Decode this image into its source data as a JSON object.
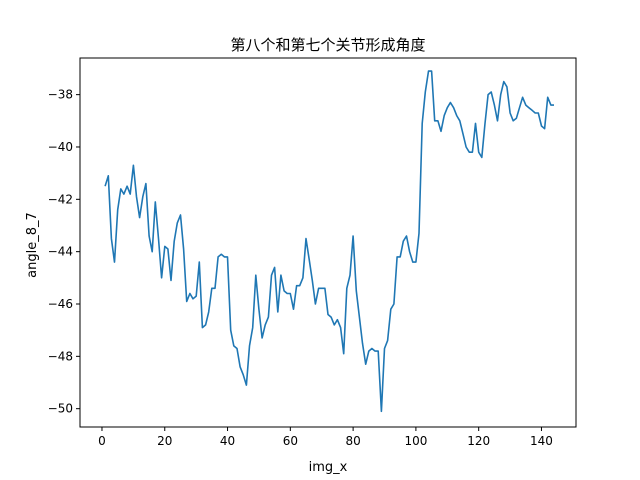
{
  "chart_data": {
    "type": "line",
    "title": "第八个和第七个关节形成角度",
    "xlabel": "img_x",
    "ylabel": "angle_8_7",
    "xlim": [
      -7,
      151
    ],
    "ylim": [
      -50.7,
      -36.6
    ],
    "x_ticks": [
      0,
      20,
      40,
      60,
      80,
      100,
      120,
      140
    ],
    "y_ticks": [
      -50,
      -48,
      -46,
      -44,
      -42,
      -40,
      -38
    ],
    "grid": false,
    "series": [
      {
        "color": "#1f77b4",
        "x": [
          1,
          2,
          3,
          4,
          5,
          6,
          7,
          8,
          9,
          10,
          11,
          12,
          13,
          14,
          15,
          16,
          17,
          18,
          19,
          20,
          21,
          22,
          23,
          24,
          25,
          26,
          27,
          28,
          29,
          30,
          31,
          32,
          33,
          34,
          35,
          36,
          37,
          38,
          39,
          40,
          41,
          42,
          43,
          44,
          45,
          46,
          47,
          48,
          49,
          50,
          51,
          52,
          53,
          54,
          55,
          56,
          57,
          58,
          59,
          60,
          61,
          62,
          63,
          64,
          65,
          66,
          67,
          68,
          69,
          70,
          71,
          72,
          73,
          74,
          75,
          76,
          77,
          78,
          79,
          80,
          81,
          82,
          83,
          84,
          85,
          86,
          87,
          88,
          89,
          90,
          91,
          92,
          93,
          94,
          95,
          96,
          97,
          98,
          99,
          100,
          101,
          102,
          103,
          104,
          105,
          106,
          107,
          108,
          109,
          110,
          111,
          112,
          113,
          114,
          115,
          116,
          117,
          118,
          119,
          120,
          121,
          122,
          123,
          124,
          125,
          126,
          127,
          128,
          129,
          130,
          131,
          132,
          133,
          134,
          135,
          136,
          137,
          138,
          139,
          140,
          141,
          142,
          143,
          144
        ],
        "y": [
          -41.5,
          -41.1,
          -43.5,
          -44.4,
          -42.4,
          -41.6,
          -41.8,
          -41.5,
          -41.8,
          -40.7,
          -41.9,
          -42.7,
          -41.9,
          -41.4,
          -43.4,
          -44.0,
          -42.1,
          -43.5,
          -45.0,
          -43.8,
          -43.9,
          -45.1,
          -43.6,
          -42.9,
          -42.6,
          -43.9,
          -45.9,
          -45.6,
          -45.8,
          -45.7,
          -44.4,
          -46.9,
          -46.8,
          -46.3,
          -45.4,
          -45.4,
          -44.2,
          -44.1,
          -44.2,
          -44.2,
          -47.0,
          -47.6,
          -47.7,
          -48.4,
          -48.7,
          -49.1,
          -47.6,
          -46.9,
          -44.9,
          -46.2,
          -47.3,
          -46.8,
          -46.5,
          -44.9,
          -44.6,
          -46.3,
          -44.9,
          -45.5,
          -45.6,
          -45.6,
          -46.2,
          -45.3,
          -45.3,
          -45.0,
          -43.5,
          -44.3,
          -45.1,
          -46.0,
          -45.4,
          -45.4,
          -45.4,
          -46.4,
          -46.5,
          -46.8,
          -46.6,
          -46.9,
          -47.9,
          -45.4,
          -44.9,
          -43.4,
          -45.5,
          -46.5,
          -47.5,
          -48.3,
          -47.8,
          -47.7,
          -47.8,
          -47.8,
          -50.1,
          -47.7,
          -47.4,
          -46.2,
          -46.0,
          -44.2,
          -44.2,
          -43.6,
          -43.4,
          -44.0,
          -44.4,
          -44.4,
          -43.3,
          -39.1,
          -37.9,
          -37.1,
          -37.1,
          -39.0,
          -39.0,
          -39.4,
          -38.8,
          -38.5,
          -38.3,
          -38.5,
          -38.8,
          -39.0,
          -39.5,
          -40.0,
          -40.2,
          -40.2,
          -39.1,
          -40.2,
          -40.4,
          -39.1,
          -38.0,
          -37.9,
          -38.4,
          -39.0,
          -38.0,
          -37.5,
          -37.7,
          -38.7,
          -39.0,
          -38.9,
          -38.5,
          -38.1,
          -38.4,
          -38.5,
          -38.6,
          -38.7,
          -38.7,
          -39.2,
          -39.3,
          -38.1,
          -38.4,
          -38.4
        ]
      }
    ]
  }
}
